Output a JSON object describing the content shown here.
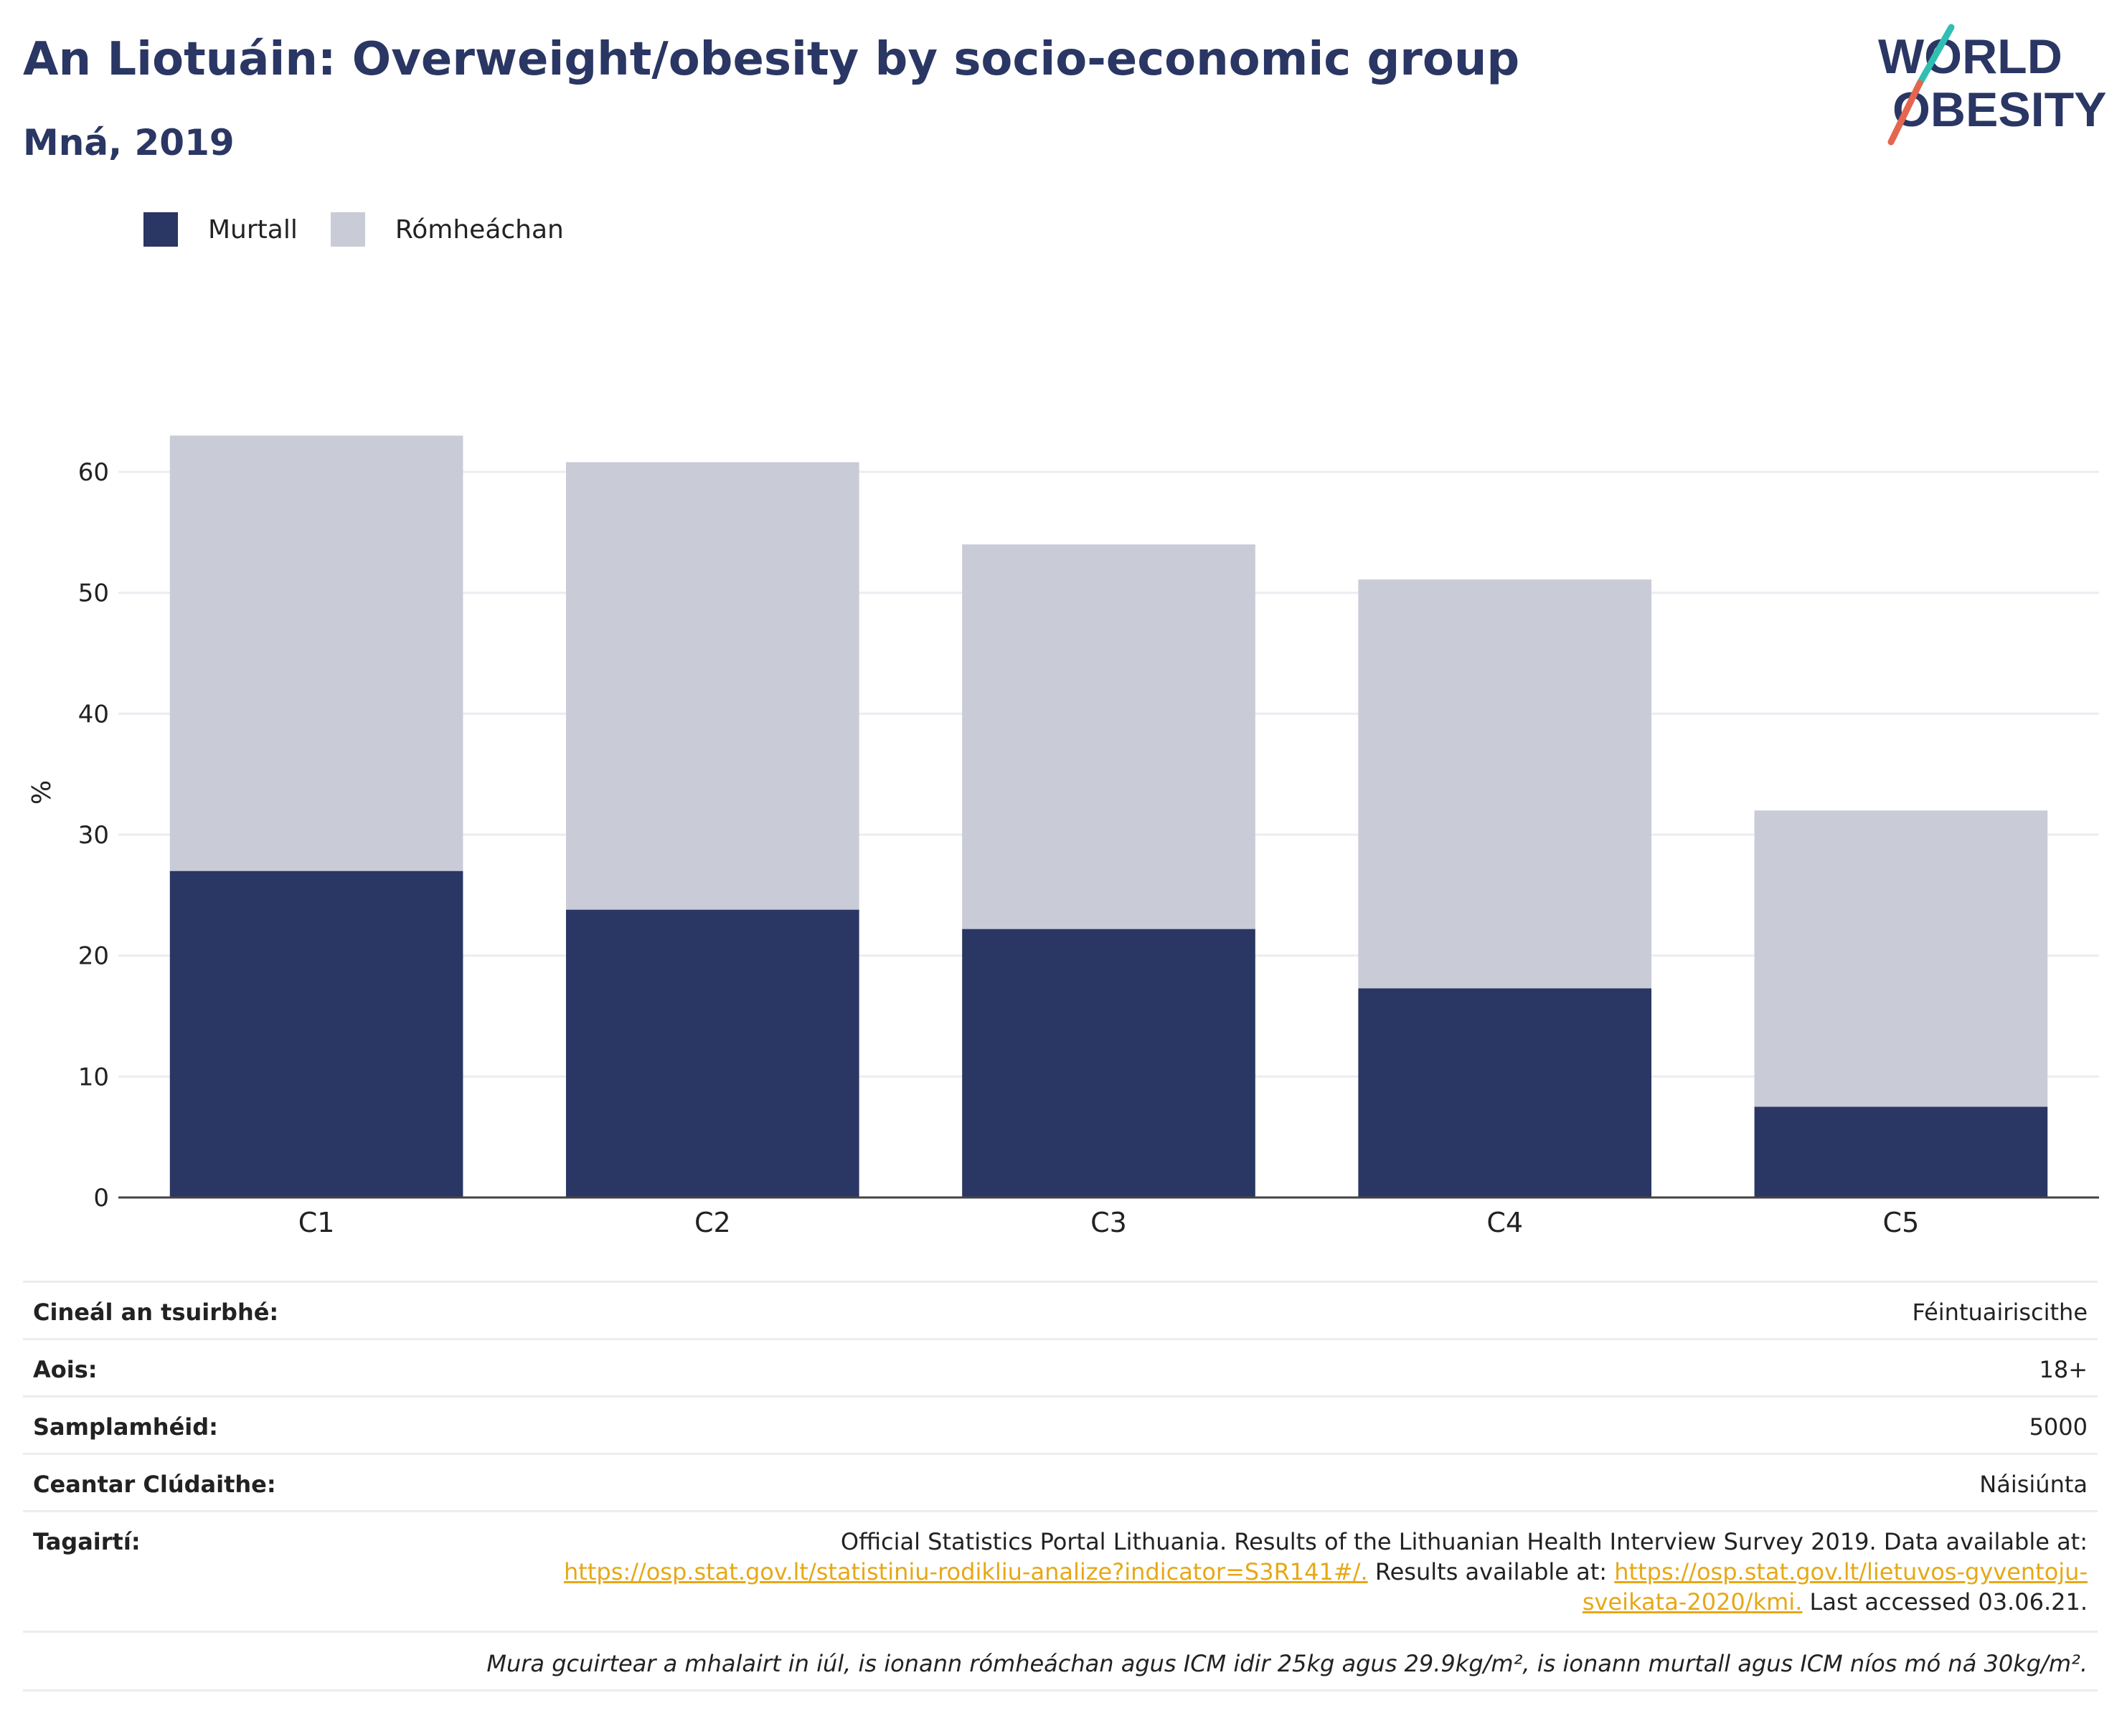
{
  "header": {
    "title": "An Liotuáin: Overweight/obesity by socio-economic group",
    "subtitle": "Mná, 2019",
    "logo_line1": "WORLD",
    "logo_line2": "OBESITY"
  },
  "legend": [
    {
      "label": "Murtall",
      "color": "#2a3663"
    },
    {
      "label": "Rómheáchan",
      "color": "#c9cbd7"
    }
  ],
  "chart_data": {
    "type": "bar",
    "stacked": true,
    "categories": [
      "C1",
      "C2",
      "C3",
      "C4",
      "C5"
    ],
    "series": [
      {
        "name": "Murtall",
        "color": "#2a3663",
        "values": [
          27.0,
          23.8,
          22.2,
          17.3,
          7.5
        ]
      },
      {
        "name": "Rómheáchan",
        "color": "#c9cbd7",
        "values": [
          36.0,
          37.0,
          31.8,
          33.8,
          24.5
        ]
      }
    ],
    "ylabel": "%",
    "ylim": [
      0,
      67
    ],
    "yticks": [
      0,
      10,
      20,
      30,
      40,
      50,
      60
    ],
    "grid": true
  },
  "info": {
    "survey_type_label": "Cineál an tsuirbhé:",
    "survey_type_value": "Féintuairiscithe",
    "age_label": "Aois:",
    "age_value": "18+",
    "sample_label": "Samplamhéid:",
    "sample_value": "5000",
    "area_label": "Ceantar Clúdaithe:",
    "area_value": "Náisiúnta",
    "ref_label": "Tagairtí:",
    "ref_text1": "Official Statistics Portal Lithuania. Results of the Lithuanian Health Interview Survey 2019. Data available at:",
    "ref_link1": "https://osp.stat.gov.lt/statistiniu-rodikliu-analize?indicator=S3R141#/.",
    "ref_text2": " Results available at: ",
    "ref_link2a": "https://osp.stat.gov.lt/lietuvos-gyventoju-",
    "ref_link2b": "sveikata-2020/kmi.",
    "ref_text3": " Last accessed 03.06.21.",
    "note": "Mura gcuirtear a mhalairt in iúl, is ionann rómheáchan agus ICM idir 25kg agus 29.9kg/m², is ionann murtall agus ICM níos mó ná 30kg/m²."
  }
}
